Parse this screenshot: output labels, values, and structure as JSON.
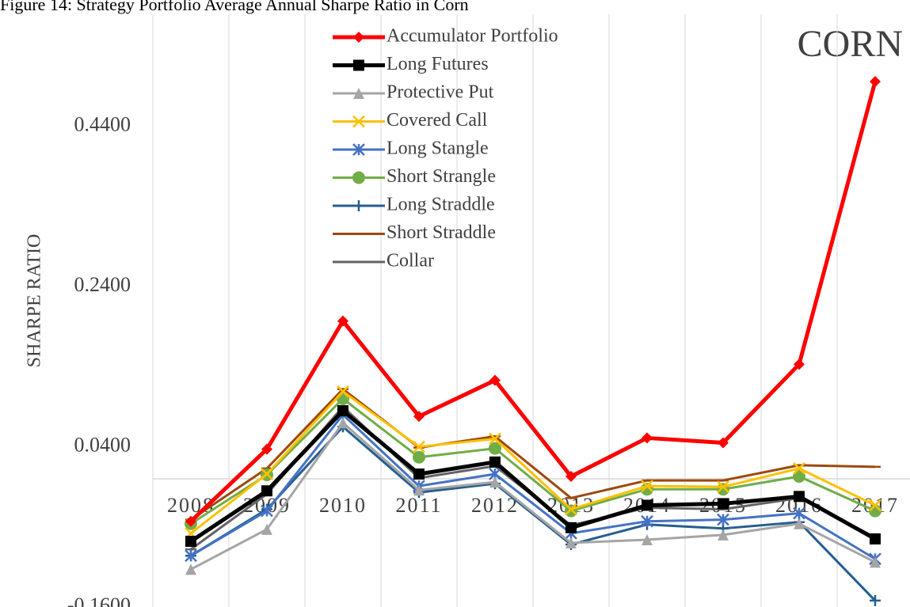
{
  "chart_data": {
    "type": "line",
    "title": "Figure 14: Strategy Portfolio Average Annual Sharpe Ratio in Corn",
    "y_label": "SHARPE RATIO",
    "annotation": "CORN",
    "categories": [
      "2008",
      "2009",
      "2010",
      "2011",
      "2012",
      "2013",
      "2014",
      "2015",
      "2016",
      "2017"
    ],
    "ylim": [
      -0.16,
      0.58
    ],
    "yticks": [
      {
        "value": -0.16,
        "label": "-0.1600"
      },
      {
        "value": 0.04,
        "label": "0.0400"
      },
      {
        "value": 0.24,
        "label": "0.2400"
      },
      {
        "value": 0.44,
        "label": "0.4400"
      }
    ],
    "legend": "top-center",
    "series": [
      {
        "name": "Accumulator Portfolio",
        "color": "#ff0000",
        "marker": "diamond",
        "line_width": 5,
        "values": [
          -0.053,
          0.037,
          0.197,
          0.078,
          0.123,
          0.003,
          0.051,
          0.045,
          0.143,
          0.496
        ]
      },
      {
        "name": "Long Futures",
        "color": "#000000",
        "marker": "square",
        "line_width": 5,
        "values": [
          -0.078,
          -0.015,
          0.085,
          0.006,
          0.021,
          -0.061,
          -0.033,
          -0.031,
          -0.022,
          -0.075
        ]
      },
      {
        "name": "Protective Put",
        "color": "#a5a5a5",
        "marker": "triangle",
        "line_width": 3,
        "values": [
          -0.113,
          -0.063,
          0.07,
          -0.014,
          -0.004,
          -0.08,
          -0.076,
          -0.07,
          -0.056,
          -0.104
        ]
      },
      {
        "name": "Covered Call",
        "color": "#ffc000",
        "marker": "x",
        "line_width": 3,
        "values": [
          -0.068,
          0.006,
          0.109,
          0.04,
          0.05,
          -0.038,
          -0.009,
          -0.01,
          0.013,
          -0.033
        ]
      },
      {
        "name": "Long Stangle",
        "color": "#4472c4",
        "marker": "star",
        "line_width": 3,
        "values": [
          -0.096,
          -0.04,
          0.08,
          -0.009,
          0.006,
          -0.068,
          -0.053,
          -0.051,
          -0.043,
          -0.1
        ]
      },
      {
        "name": "Short Strangle",
        "color": "#70ad47",
        "marker": "circle",
        "line_width": 3,
        "values": [
          -0.056,
          0.005,
          0.1,
          0.027,
          0.038,
          -0.04,
          -0.013,
          -0.013,
          0.003,
          -0.04
        ]
      },
      {
        "name": "Long Straddle",
        "color": "#255e91",
        "marker": "plus",
        "line_width": 3,
        "values": [
          -0.096,
          -0.038,
          0.065,
          -0.017,
          -0.006,
          -0.082,
          -0.057,
          -0.062,
          -0.054,
          -0.152
        ]
      },
      {
        "name": "Short Straddle",
        "color": "#9e480e",
        "marker": "dash",
        "line_width": 3,
        "values": [
          -0.051,
          0.013,
          0.112,
          0.039,
          0.053,
          -0.024,
          -0.002,
          -0.002,
          0.017,
          0.015
        ]
      },
      {
        "name": "Collar",
        "color": "#636363",
        "marker": "dash",
        "line_width": 3,
        "values": [
          -0.088,
          -0.019,
          0.09,
          0.001,
          0.016,
          -0.058,
          -0.036,
          -0.038,
          -0.024,
          -0.073
        ]
      }
    ]
  }
}
